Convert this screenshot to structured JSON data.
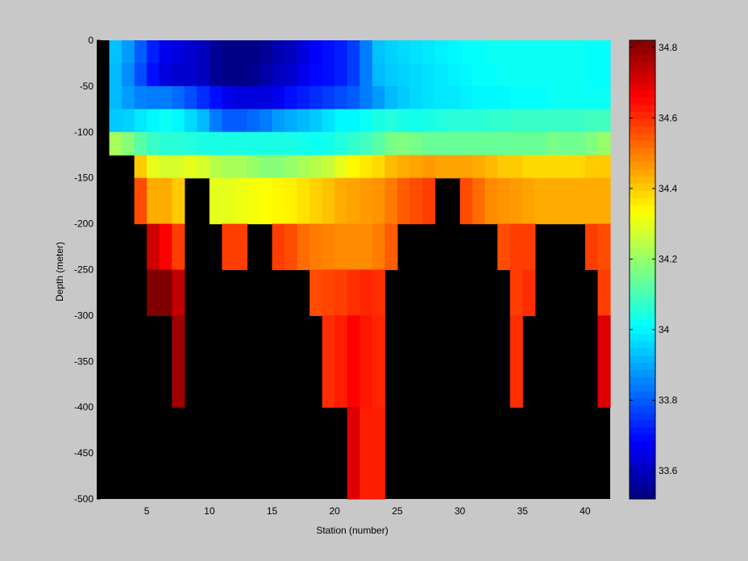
{
  "chart_data": {
    "type": "heatmap",
    "title": "",
    "xlabel": "Station (number)",
    "ylabel": "Depth (meter)",
    "xlim": [
      1,
      42
    ],
    "ylim": [
      -500,
      0
    ],
    "x_ticks": [
      5,
      10,
      15,
      20,
      25,
      30,
      35,
      40
    ],
    "y_ticks": [
      0,
      -50,
      -100,
      -150,
      -200,
      -250,
      -300,
      -350,
      -400,
      -450,
      -500
    ],
    "colorbar": {
      "range": [
        33.52,
        34.82
      ],
      "ticks": [
        33.6,
        33.8,
        34,
        34.2,
        34.4,
        34.6,
        34.8
      ],
      "tick_labels": [
        "33.6",
        "33.8",
        "34",
        "34.2",
        "34.4",
        "34.6",
        "34.8"
      ],
      "colormap": "jet"
    },
    "background_color": "#000000",
    "stations": [
      2,
      3,
      4,
      5,
      6,
      7,
      8,
      9,
      10,
      11,
      12,
      13,
      14,
      15,
      16,
      17,
      18,
      19,
      20,
      21,
      22,
      23,
      24,
      25,
      26,
      27,
      28,
      29,
      30,
      31,
      32,
      33,
      34,
      35,
      36,
      37,
      38,
      39,
      40,
      41
    ],
    "depth_bands": [
      {
        "top": 0,
        "bottom": -25
      },
      {
        "top": -25,
        "bottom": -50
      },
      {
        "top": -50,
        "bottom": -75
      },
      {
        "top": -75,
        "bottom": -100
      },
      {
        "top": -100,
        "bottom": -125
      },
      {
        "top": -125,
        "bottom": -150
      },
      {
        "top": -150,
        "bottom": -200
      },
      {
        "top": -200,
        "bottom": -250
      },
      {
        "top": -250,
        "bottom": -300
      },
      {
        "top": -300,
        "bottom": -400
      },
      {
        "top": -400,
        "bottom": -500
      }
    ],
    "values": [
      [
        33.93,
        33.88,
        33.8,
        33.72,
        33.66,
        33.64,
        33.62,
        33.6,
        33.55,
        33.53,
        33.53,
        33.53,
        33.55,
        33.58,
        33.6,
        33.64,
        33.68,
        33.7,
        33.72,
        33.76,
        33.84,
        33.93,
        33.95,
        33.96,
        33.97,
        33.98,
        33.99,
        34.0,
        34.01,
        34.01,
        34.02,
        34.02,
        34.02,
        34.02,
        34.02,
        34.02,
        34.02,
        34.02,
        34.01,
        34.01
      ],
      [
        33.92,
        33.86,
        33.78,
        33.7,
        33.64,
        33.62,
        33.62,
        33.6,
        33.55,
        33.53,
        33.53,
        33.54,
        33.57,
        33.6,
        33.62,
        33.66,
        33.69,
        33.7,
        33.72,
        33.76,
        33.84,
        33.92,
        33.94,
        33.95,
        33.96,
        33.97,
        33.98,
        33.99,
        34.0,
        34.01,
        34.01,
        34.02,
        34.02,
        34.02,
        34.02,
        34.02,
        34.02,
        34.02,
        34.01,
        34.01
      ],
      [
        33.92,
        33.88,
        33.85,
        33.84,
        33.84,
        33.82,
        33.78,
        33.74,
        33.7,
        33.66,
        33.64,
        33.64,
        33.64,
        33.66,
        33.7,
        33.72,
        33.74,
        33.76,
        33.78,
        33.8,
        33.84,
        33.88,
        33.92,
        33.94,
        33.96,
        33.97,
        33.98,
        33.98,
        33.99,
        34.0,
        34.0,
        34.0,
        34.01,
        34.01,
        34.01,
        34.02,
        34.02,
        34.02,
        34.02,
        34.02
      ],
      [
        33.94,
        33.95,
        33.98,
        34.0,
        34.02,
        34.0,
        33.96,
        33.92,
        33.84,
        33.8,
        33.8,
        33.82,
        33.84,
        33.88,
        33.9,
        33.92,
        33.94,
        33.97,
        34.0,
        34.0,
        34.02,
        34.04,
        34.05,
        34.04,
        34.03,
        34.04,
        34.05,
        34.06,
        34.06,
        34.06,
        34.07,
        34.07,
        34.08,
        34.08,
        34.08,
        34.08,
        34.08,
        34.08,
        34.09,
        34.09
      ],
      [
        34.22,
        34.18,
        34.12,
        34.08,
        34.06,
        34.06,
        34.05,
        34.04,
        34.04,
        34.04,
        34.04,
        34.04,
        34.04,
        34.04,
        34.04,
        34.03,
        34.02,
        34.03,
        34.05,
        34.07,
        34.09,
        34.12,
        34.16,
        34.17,
        34.16,
        34.14,
        34.14,
        34.14,
        34.14,
        34.14,
        34.14,
        34.14,
        34.14,
        34.14,
        34.14,
        34.16,
        34.15,
        34.15,
        34.17,
        34.2
      ],
      [
        null,
        null,
        34.4,
        34.3,
        34.28,
        34.28,
        34.3,
        34.28,
        34.24,
        34.22,
        34.22,
        34.2,
        34.18,
        34.18,
        34.2,
        34.22,
        34.24,
        34.26,
        34.3,
        34.34,
        34.36,
        34.38,
        34.42,
        34.44,
        34.45,
        34.46,
        34.45,
        34.45,
        34.45,
        34.44,
        34.42,
        34.4,
        34.4,
        34.38,
        34.38,
        34.38,
        34.38,
        34.38,
        34.4,
        34.4
      ],
      [
        null,
        null,
        34.56,
        34.44,
        34.44,
        34.4,
        null,
        null,
        34.3,
        34.3,
        34.31,
        34.32,
        34.33,
        34.34,
        34.35,
        34.37,
        34.39,
        34.41,
        34.44,
        34.45,
        34.46,
        34.47,
        34.5,
        34.54,
        34.56,
        34.58,
        null,
        null,
        34.56,
        34.52,
        34.48,
        34.47,
        34.46,
        34.45,
        34.44,
        34.44,
        34.44,
        34.44,
        34.44,
        34.44
      ],
      [
        null,
        null,
        null,
        34.72,
        34.66,
        34.58,
        null,
        null,
        null,
        34.58,
        34.58,
        null,
        null,
        34.58,
        34.56,
        34.52,
        34.5,
        34.49,
        34.48,
        34.48,
        34.48,
        34.5,
        34.54,
        null,
        null,
        null,
        null,
        null,
        null,
        null,
        null,
        34.56,
        34.58,
        34.58,
        null,
        null,
        null,
        null,
        34.58,
        34.56
      ],
      [
        null,
        null,
        null,
        34.82,
        34.82,
        34.74,
        null,
        null,
        null,
        null,
        null,
        null,
        null,
        null,
        null,
        null,
        34.56,
        34.57,
        34.58,
        34.6,
        34.61,
        34.6,
        null,
        null,
        null,
        null,
        null,
        null,
        null,
        null,
        null,
        null,
        34.58,
        34.6,
        null,
        null,
        null,
        null,
        null,
        34.58
      ],
      [
        null,
        null,
        null,
        null,
        null,
        34.78,
        null,
        null,
        null,
        null,
        null,
        null,
        null,
        null,
        null,
        null,
        null,
        34.6,
        34.62,
        34.66,
        34.63,
        34.61,
        null,
        null,
        null,
        null,
        null,
        null,
        null,
        null,
        null,
        null,
        34.6,
        null,
        null,
        null,
        null,
        null,
        null,
        34.7
      ],
      [
        null,
        null,
        null,
        null,
        null,
        null,
        null,
        null,
        null,
        null,
        null,
        null,
        null,
        null,
        null,
        null,
        null,
        null,
        null,
        34.7,
        34.62,
        34.62,
        null,
        null,
        null,
        null,
        null,
        null,
        null,
        null,
        null,
        null,
        null,
        null,
        null,
        null,
        null,
        null,
        null,
        null
      ]
    ]
  }
}
